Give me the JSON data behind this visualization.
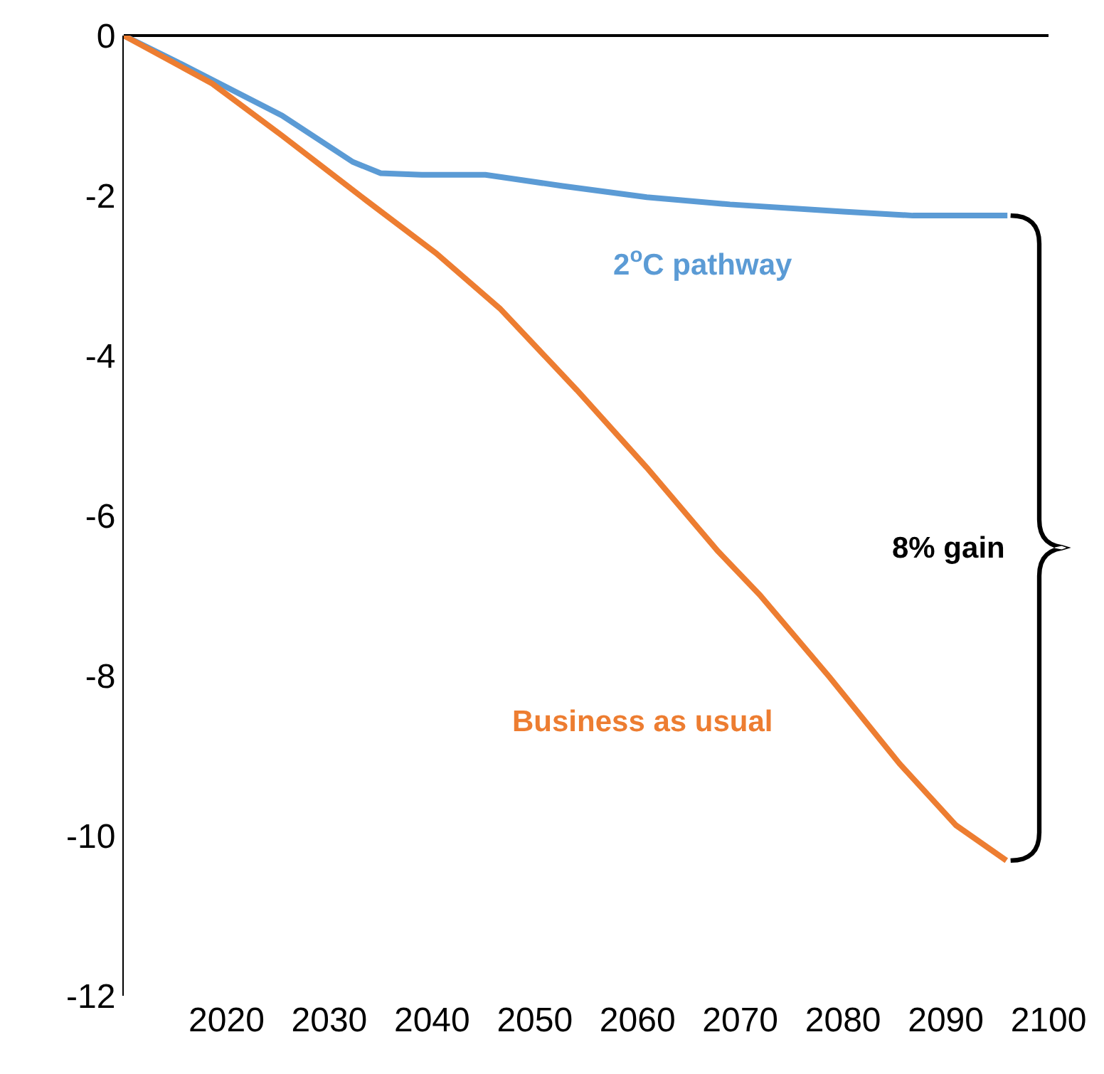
{
  "chart_data": {
    "type": "line",
    "xlim": [
      2010,
      2100
    ],
    "xticks": [
      2020,
      2030,
      2040,
      2050,
      2060,
      2070,
      2080,
      2090,
      2100
    ],
    "ylim": [
      -12,
      0
    ],
    "yticks": [
      0,
      -2,
      -4,
      -6,
      -8,
      -10,
      -12
    ],
    "legend": false,
    "marker": "none",
    "line_style": "solid",
    "series": [
      {
        "name": "2$^{o}$C pathway",
        "color": "#5b9bd5",
        "x": [
          2010,
          2015.2,
          2025.4,
          2032.3,
          2035,
          2039,
          2045.2,
          2052.7,
          2060.9,
          2069,
          2080,
          2086.8,
          2096
        ],
        "values": [
          0,
          -0.33,
          -1.0,
          -1.58,
          -1.72,
          -1.74,
          -1.74,
          -1.88,
          -2.02,
          -2.11,
          -2.2,
          -2.25,
          -2.25
        ]
      },
      {
        "name": "Business as usual",
        "color": "#ed7d31",
        "x": [
          2010,
          2018.6,
          2025.4,
          2033.6,
          2040.4,
          2046.6,
          2054.1,
          2060.9,
          2067.8,
          2071.9,
          2078.7,
          2085.5,
          2091,
          2095.9
        ],
        "values": [
          0,
          -0.6,
          -1.25,
          -2.06,
          -2.72,
          -3.41,
          -4.43,
          -5.4,
          -6.44,
          -6.99,
          -8.02,
          -9.1,
          -9.87,
          -10.31
        ]
      }
    ],
    "annotations": [
      "8% gain"
    ]
  }
}
